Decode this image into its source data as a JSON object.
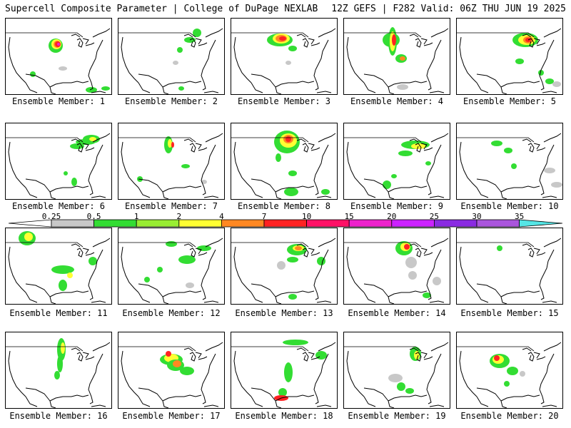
{
  "header": {
    "left": "Supercell Composite Parameter | College of DuPage NEXLAB",
    "right": "12Z GEFS | F282 Valid: 06Z THU JUN 19 2025"
  },
  "colorbar": {
    "ticks": [
      "0.25",
      "0.5",
      "1",
      "2",
      "4",
      "7",
      "10",
      "15",
      "20",
      "25",
      "30",
      "35"
    ],
    "colors": [
      "#c8c8c8",
      "#33dd33",
      "#99ee33",
      "#ffff33",
      "#ff8822",
      "#ff2222",
      "#ff1166",
      "#ee22cc",
      "#cc22ff",
      "#8a2be2",
      "#aa55dd",
      "#55e5e5"
    ]
  },
  "panels": [
    {
      "label": "Ensemble Member: 1"
    },
    {
      "label": "Ensemble Member: 2"
    },
    {
      "label": "Ensemble Member: 3"
    },
    {
      "label": "Ensemble Member: 4"
    },
    {
      "label": "Ensemble Member: 5"
    },
    {
      "label": "Ensemble Member: 6"
    },
    {
      "label": "Ensemble Member: 7"
    },
    {
      "label": "Ensemble Member: 8"
    },
    {
      "label": "Ensemble Member: 9"
    },
    {
      "label": "Ensemble Member: 10"
    },
    {
      "label": "Ensemble Member: 11"
    },
    {
      "label": "Ensemble Member: 12"
    },
    {
      "label": "Ensemble Member: 13"
    },
    {
      "label": "Ensemble Member: 14"
    },
    {
      "label": "Ensemble Member: 15"
    },
    {
      "label": "Ensemble Member: 16"
    },
    {
      "label": "Ensemble Member: 17"
    },
    {
      "label": "Ensemble Member: 18"
    },
    {
      "label": "Ensemble Member: 19"
    },
    {
      "label": "Ensemble Member: 20"
    }
  ]
}
